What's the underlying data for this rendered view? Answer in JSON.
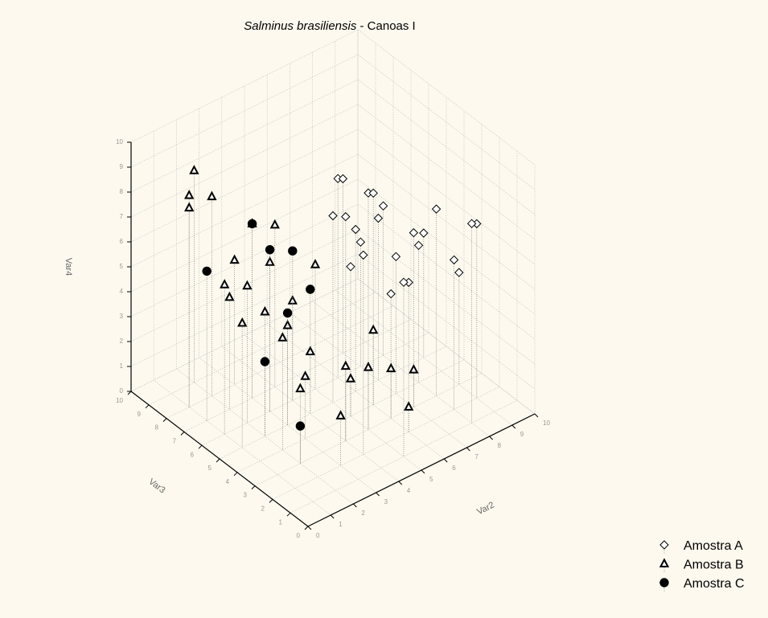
{
  "chart_data": {
    "type": "scatter3d",
    "title_parts": [
      {
        "text": "Salminus brasiliensis",
        "italic": true
      },
      {
        "text": " - Canoas I",
        "italic": false
      }
    ],
    "xlabel": "Var2",
    "ylabel": "Var3",
    "zlabel": "Var4",
    "xlim": [
      0,
      10
    ],
    "ylim": [
      0,
      10
    ],
    "zlim": [
      0,
      10
    ],
    "xticks": [
      0,
      1,
      2,
      3,
      4,
      5,
      6,
      7,
      8,
      9,
      10
    ],
    "yticks": [
      0,
      1,
      2,
      3,
      4,
      5,
      6,
      7,
      8,
      9,
      10
    ],
    "zticks": [
      0,
      1,
      2,
      3,
      4,
      5,
      6,
      7,
      8,
      9,
      10
    ],
    "grid": true,
    "legend": "lower right",
    "series": [
      {
        "name": "Amostra A",
        "color": "#000000",
        "marker": "diamond",
        "x": [
          5,
          4,
          6,
          7,
          8,
          5,
          6,
          7,
          8,
          9,
          6,
          7,
          5,
          8,
          9,
          6,
          7,
          5,
          8,
          4,
          6,
          7,
          9,
          8
        ],
        "y": [
          3,
          2,
          4,
          3,
          2,
          5,
          6,
          5,
          4,
          3,
          2,
          7,
          1,
          6,
          5,
          3,
          4,
          4,
          3,
          3,
          5,
          6,
          2,
          1
        ],
        "z": [
          9.5,
          8,
          8.5,
          7,
          6,
          7.5,
          8,
          6.5,
          5.5,
          4.5,
          6,
          7,
          7,
          6,
          5,
          5,
          5.5,
          6,
          7.5,
          9,
          6.5,
          5,
          7,
          8
        ]
      },
      {
        "name": "Amostra B",
        "color": "#000000",
        "marker": "triangle",
        "x": [
          1,
          1,
          2,
          2,
          3,
          1,
          2,
          3,
          2,
          3,
          4,
          2,
          3,
          4,
          5,
          5,
          6,
          6,
          4,
          3,
          5,
          4,
          2,
          3,
          6,
          7,
          1,
          2
        ],
        "y": [
          8,
          8,
          8,
          9,
          7,
          6,
          6,
          8,
          5,
          5,
          6,
          3,
          4,
          5,
          4,
          3,
          3,
          2,
          3,
          2,
          6,
          7,
          7,
          6,
          4,
          3,
          5,
          4
        ],
        "z": [
          8.5,
          8,
          8,
          8.5,
          7,
          6,
          5.5,
          5,
          5,
          4,
          4,
          3,
          2.5,
          2.5,
          1.5,
          2.5,
          2,
          1,
          3,
          2,
          5,
          6.5,
          4.5,
          6,
          3,
          1.5,
          5,
          4.5
        ]
      },
      {
        "name": "Amostra C",
        "color": "#000000",
        "marker": "circle",
        "x": [
          1,
          3,
          3,
          4,
          2,
          2,
          4,
          3
        ],
        "y": [
          7,
          6,
          5,
          5,
          5,
          3,
          6,
          7
        ],
        "z": [
          6,
          6.5,
          4.5,
          5,
          3,
          1.5,
          6,
          7
        ]
      }
    ]
  }
}
